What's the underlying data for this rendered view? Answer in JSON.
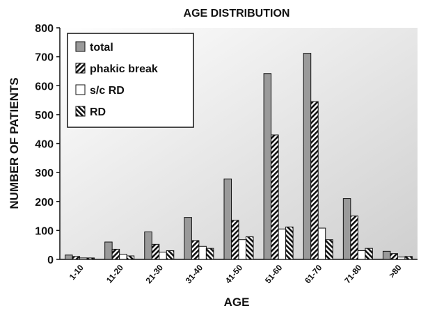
{
  "chart_data": {
    "type": "bar",
    "title": "AGE DISTRIBUTION",
    "x_label": "AGE",
    "y_label": "NUMBER OF PATIENTS",
    "categories": [
      "1-10",
      "11-20",
      "21-30",
      "31-40",
      "41-50",
      "51-60",
      "61-70",
      "71-80",
      ">80"
    ],
    "series": [
      {
        "name": "total",
        "color": "#9a9a9a",
        "pattern": "solid",
        "values": [
          15,
          60,
          95,
          145,
          278,
          642,
          712,
          210,
          28
        ]
      },
      {
        "name": "phakic break",
        "color": "#111111",
        "pattern": "hatch-up",
        "values": [
          10,
          35,
          52,
          65,
          135,
          430,
          545,
          150,
          20
        ]
      },
      {
        "name": "s/c RD",
        "color": "#ffffff",
        "pattern": "solid",
        "values": [
          5,
          18,
          25,
          45,
          68,
          105,
          108,
          30,
          8
        ]
      },
      {
        "name": "RD",
        "color": "#111111",
        "pattern": "hatch-down",
        "values": [
          5,
          12,
          30,
          38,
          78,
          112,
          68,
          38,
          10
        ]
      }
    ],
    "ylim": [
      0,
      800
    ],
    "yticks": [
      0,
      100,
      200,
      300,
      400,
      500,
      600,
      700,
      800
    ],
    "legend": "upper left"
  }
}
